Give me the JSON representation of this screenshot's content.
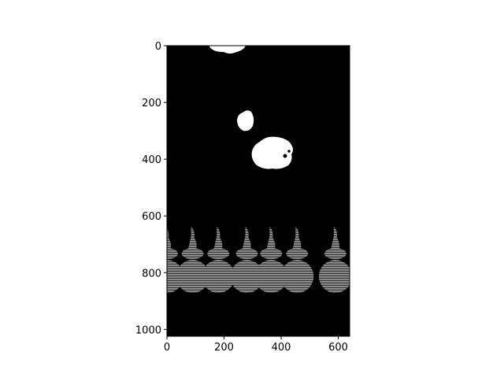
{
  "figure": {
    "image_extent": {
      "x_max": 640,
      "y_max": 1024
    },
    "background_color": "#000000",
    "blob_color": "#ffffff",
    "striped_shape_color": "#8a8a8a",
    "x_axis": {
      "ticks": [
        "0",
        "200",
        "400",
        "600"
      ]
    },
    "y_axis": {
      "ticks": [
        "0",
        "200",
        "400",
        "600",
        "800",
        "1000"
      ]
    }
  }
}
